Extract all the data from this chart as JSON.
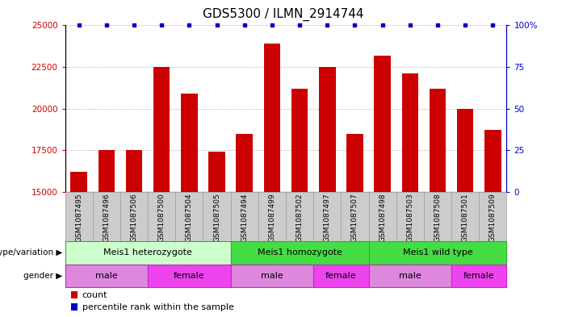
{
  "title": "GDS5300 / ILMN_2914744",
  "samples": [
    "GSM1087495",
    "GSM1087496",
    "GSM1087506",
    "GSM1087500",
    "GSM1087504",
    "GSM1087505",
    "GSM1087494",
    "GSM1087499",
    "GSM1087502",
    "GSM1087497",
    "GSM1087507",
    "GSM1087498",
    "GSM1087503",
    "GSM1087508",
    "GSM1087501",
    "GSM1087509"
  ],
  "counts": [
    16200,
    17500,
    17500,
    22500,
    20900,
    17400,
    18500,
    23900,
    21200,
    22500,
    18500,
    23200,
    22100,
    21200,
    20000,
    18700
  ],
  "ylim_left": [
    15000,
    25000
  ],
  "ylim_right": [
    0,
    100
  ],
  "yticks_left": [
    15000,
    17500,
    20000,
    22500,
    25000
  ],
  "yticks_right": [
    0,
    25,
    50,
    75,
    100
  ],
  "bar_color": "#cc0000",
  "dot_color": "#0000cc",
  "genotype_groups": [
    {
      "label": "Meis1 heterozygote",
      "start": 0,
      "end": 5,
      "color": "#ccffcc"
    },
    {
      "label": "Meis1 homozygote",
      "start": 6,
      "end": 10,
      "color": "#44dd44"
    },
    {
      "label": "Meis1 wild type",
      "start": 11,
      "end": 15,
      "color": "#44dd44"
    }
  ],
  "gender_groups": [
    {
      "label": "male",
      "start": 0,
      "end": 2,
      "color": "#dd88dd"
    },
    {
      "label": "female",
      "start": 3,
      "end": 5,
      "color": "#ee44ee"
    },
    {
      "label": "male",
      "start": 6,
      "end": 8,
      "color": "#dd88dd"
    },
    {
      "label": "female",
      "start": 9,
      "end": 10,
      "color": "#ee44ee"
    },
    {
      "label": "male",
      "start": 11,
      "end": 13,
      "color": "#dd88dd"
    },
    {
      "label": "female",
      "start": 14,
      "end": 15,
      "color": "#ee44ee"
    }
  ],
  "legend_count_label": "count",
  "legend_percentile_label": "percentile rank within the sample",
  "genotype_label": "genotype/variation",
  "gender_label": "gender",
  "title_fontsize": 11,
  "tick_fontsize": 7.5,
  "sample_fontsize": 6.5,
  "row_fontsize": 8,
  "bg_color": "#cccccc",
  "geno_border_color": "#33aa33",
  "gender_border_color": "#cc22cc"
}
